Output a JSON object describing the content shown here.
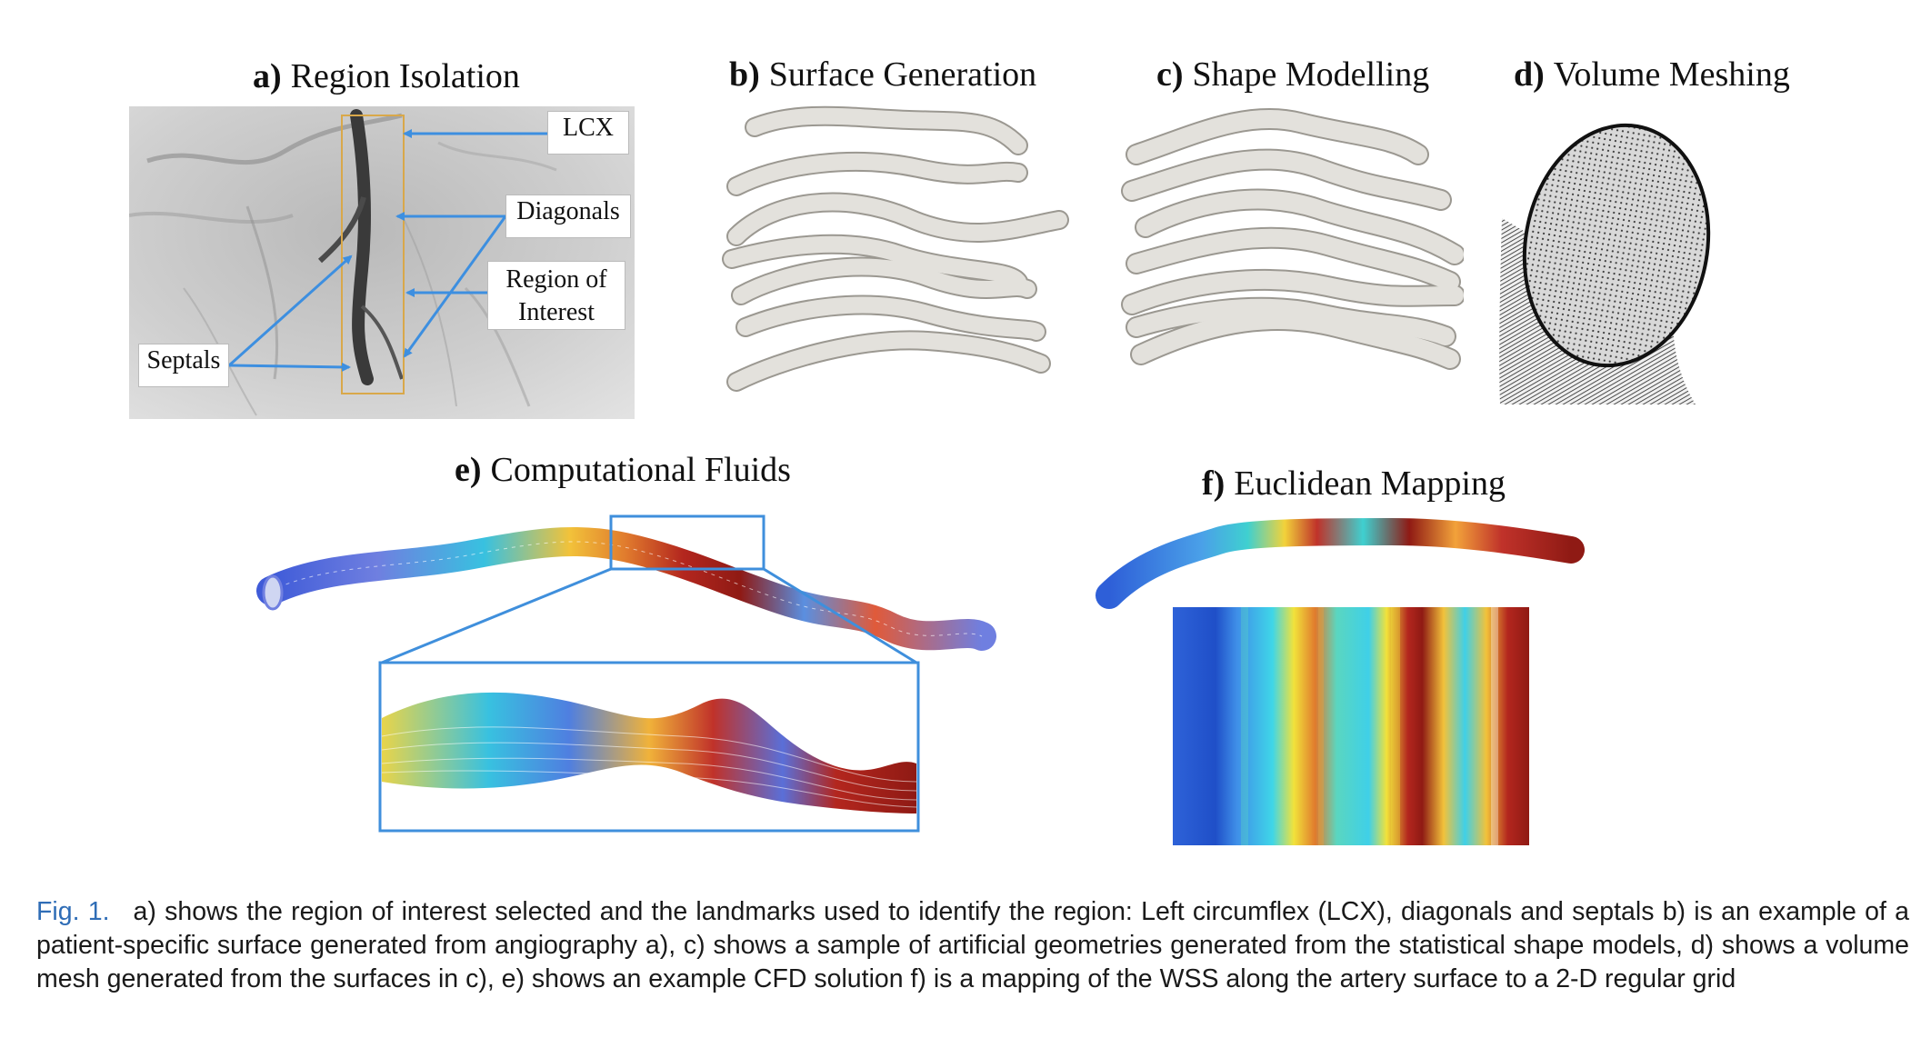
{
  "panels": {
    "a": {
      "letter": "a)",
      "title": "Region Isolation"
    },
    "b": {
      "letter": "b)",
      "title": "Surface Generation"
    },
    "c": {
      "letter": "c)",
      "title": "Shape Modelling"
    },
    "d": {
      "letter": "d)",
      "title": "Volume Meshing"
    },
    "e": {
      "letter": "e)",
      "title": "Computational Fluids"
    },
    "f": {
      "letter": "f)",
      "title": "Euclidean Mapping"
    }
  },
  "callouts": {
    "lcx": "LCX",
    "diagonals": "Diagonals",
    "roi_line1": "Region of",
    "roi_line2": "Interest",
    "septals": "Septals"
  },
  "caption": {
    "label": "Fig. 1.",
    "text": "a) shows the region of interest selected and the landmarks used to identify the region: Left circumflex (LCX), diagonals and septals b) is an example of a patient-specific surface generated from angiography a), c) shows a sample of artificial geometries generated from the statistical shape models, d) shows a volume mesh generated from the surfaces in c), e) shows an example CFD solution f) is a mapping of the WSS along the artery surface to a 2-D regular grid"
  },
  "colors": {
    "arrow_blue": "#3d8fe0",
    "caption_label_blue": "#2f6db6",
    "roi_box": "#d9a84a",
    "vessel_grey": "#e3e1dc",
    "inset_box": "#3f8fdc"
  }
}
